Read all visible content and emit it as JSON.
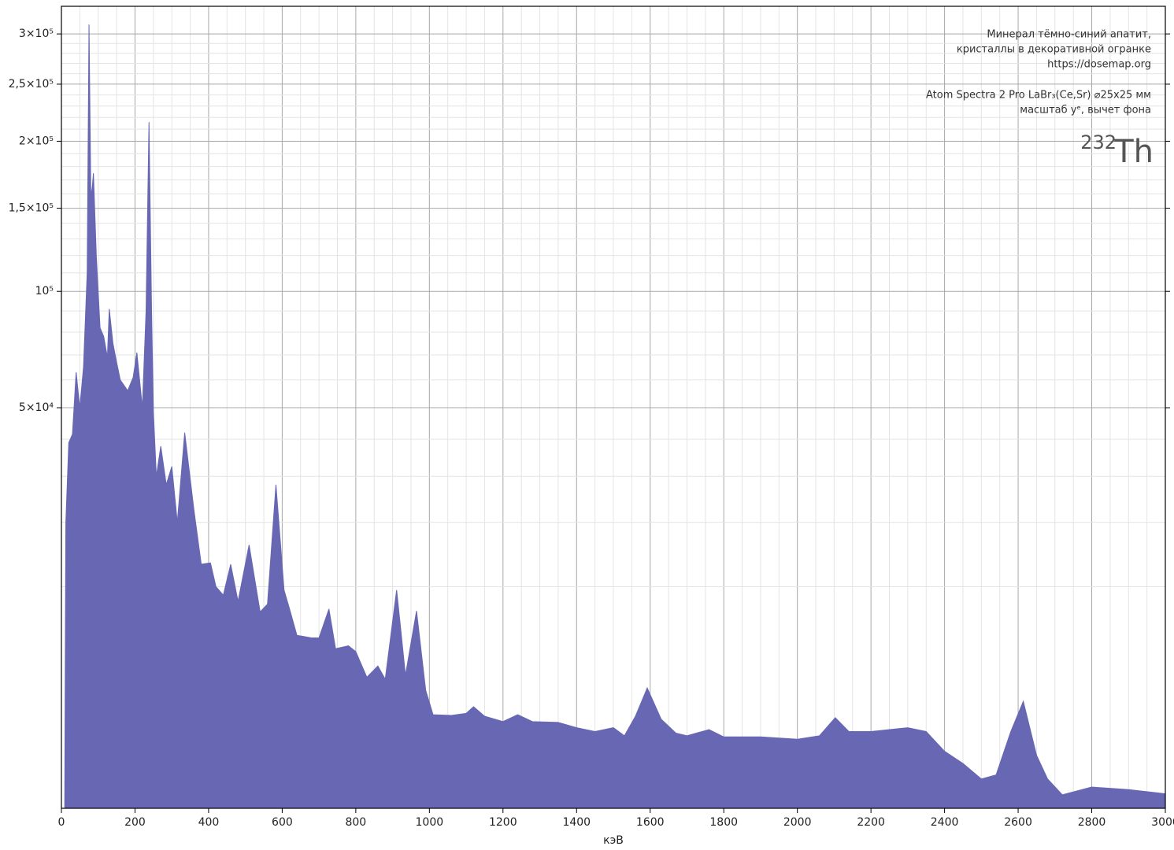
{
  "chart_data": {
    "type": "area",
    "annotations": [
      "Минерал тёмно-синий апатит,",
      "кристаллы в декоративной огранке",
      "https://dosemap.org",
      "Atom Spectra 2 Pro LaBr₃(Ce,Sr) ⌀25x25 мм",
      "масштаб yᵉ, вычет фона"
    ],
    "isotope": {
      "mass": "232",
      "element": "Th"
    },
    "xlabel": "кэВ",
    "color": "#6767b3",
    "yscale": "power-e",
    "grid": true,
    "xlim": [
      0,
      3000
    ],
    "xticks": [
      0,
      200,
      400,
      600,
      800,
      1000,
      1200,
      1400,
      1600,
      1800,
      2000,
      2200,
      2400,
      2600,
      2800,
      3000
    ],
    "ylim": [
      0,
      330000
    ],
    "yticks": [
      {
        "value": 50000,
        "label": "5×10⁴"
      },
      {
        "value": 100000,
        "label": "10⁵"
      },
      {
        "value": 150000,
        "label": "1,5×10⁵"
      },
      {
        "value": 200000,
        "label": "2×10⁵"
      },
      {
        "value": 250000,
        "label": "2,5×10⁵"
      },
      {
        "value": 300000,
        "label": "3×10⁵"
      }
    ],
    "x": [
      9,
      12,
      20,
      30,
      40,
      50,
      60,
      70,
      75,
      80,
      84,
      87,
      95,
      105,
      115,
      125,
      130,
      140,
      150,
      160,
      170,
      180,
      195,
      205,
      220,
      230,
      238,
      245,
      250,
      258,
      270,
      285,
      300,
      315,
      335,
      360,
      380,
      405,
      420,
      440,
      460,
      480,
      510,
      540,
      560,
      583,
      605,
      620,
      640,
      680,
      700,
      727,
      745,
      780,
      800,
      830,
      860,
      880,
      911,
      935,
      965,
      990,
      1010,
      1060,
      1100,
      1120,
      1150,
      1200,
      1240,
      1280,
      1350,
      1400,
      1450,
      1500,
      1530,
      1560,
      1592,
      1630,
      1670,
      1700,
      1760,
      1800,
      1900,
      2000,
      2060,
      2103,
      2140,
      2200,
      2300,
      2350,
      2400,
      2450,
      2500,
      2540,
      2580,
      2614,
      2650,
      2680,
      2720,
      2800,
      2900,
      3000
    ],
    "values": [
      0,
      20000,
      39000,
      41500,
      63000,
      50000,
      65000,
      110000,
      310000,
      158000,
      165000,
      175000,
      119000,
      82000,
      78000,
      69000,
      91000,
      75000,
      67000,
      60000,
      58000,
      56000,
      61000,
      71000,
      50000,
      90000,
      216000,
      90000,
      48500,
      30000,
      38000,
      28000,
      32500,
      20000,
      42000,
      22500,
      13000,
      13200,
      10000,
      9000,
      13000,
      8300,
      16000,
      7200,
      8000,
      28000,
      9600,
      7500,
      5100,
      4900,
      4900,
      7500,
      4100,
      4300,
      3900,
      2400,
      3000,
      2300,
      9600,
      2500,
      7300,
      1800,
      960,
      940,
      1000,
      1200,
      920,
      780,
      960,
      780,
      760,
      640,
      560,
      640,
      480,
      920,
      1900,
      840,
      530,
      480,
      600,
      460,
      460,
      420,
      480,
      880,
      560,
      560,
      640,
      560,
      250,
      130,
      41,
      58,
      560,
      1380,
      205,
      41,
      5,
      17,
      12,
      6
    ]
  }
}
